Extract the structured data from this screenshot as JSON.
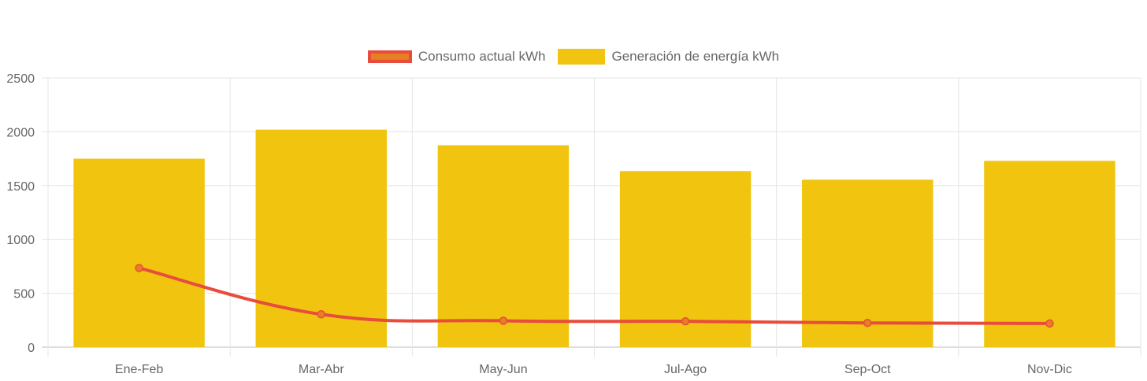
{
  "chart_data": {
    "type": "bar",
    "categories": [
      "Ene-Feb",
      "Mar-Abr",
      "May-Jun",
      "Jul-Ago",
      "Sep-Oct",
      "Nov-Dic"
    ],
    "series": [
      {
        "name": "Consumo actual kWh",
        "type": "line",
        "values": [
          735,
          305,
          245,
          240,
          225,
          220
        ],
        "color": "#e74c3c",
        "point_color": "#e67e22"
      },
      {
        "name": "Generación de energía kWh",
        "type": "bar",
        "values": [
          1750,
          2020,
          1875,
          1635,
          1555,
          1730
        ],
        "color": "#f1c40f"
      }
    ],
    "yticks": [
      "0",
      "500",
      "1000",
      "1500",
      "2000",
      "2500"
    ],
    "ylim": [
      0,
      2500
    ],
    "grid": true,
    "legend_position": "top"
  }
}
